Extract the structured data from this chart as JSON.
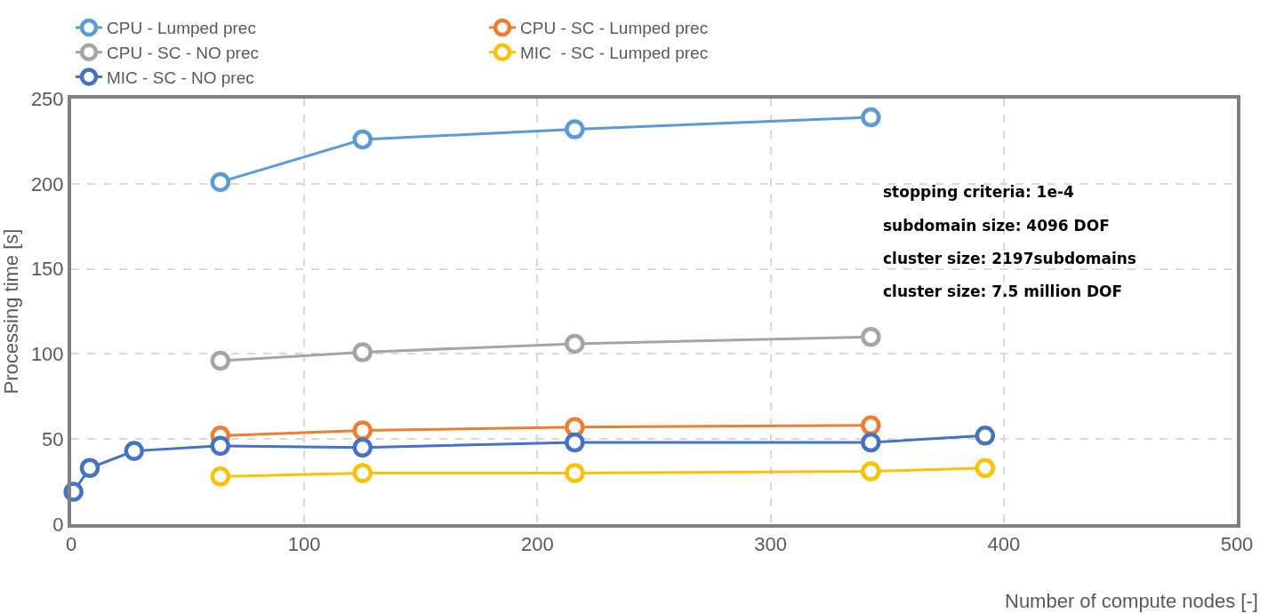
{
  "chart_data": {
    "type": "line",
    "xlabel": "Number of compute nodes [-]",
    "ylabel": "Processing time [s]",
    "xlim": [
      0,
      500
    ],
    "xticks": [
      0,
      100,
      200,
      300,
      400,
      500
    ],
    "ylim": [
      0,
      250
    ],
    "yticks": [
      0,
      50,
      100,
      150,
      200,
      250
    ],
    "grid": true,
    "legend": "top",
    "marker": "circle",
    "line_style": "solid",
    "annotations": [
      "stopping criteria: 1e-4",
      "subdomain size: 4096 DOF",
      "cluster size: 2197subdomains",
      "cluster size: 7.5 million DOF"
    ],
    "series": [
      {
        "name": "CPU - Lumped prec",
        "color": "#5b9bd5",
        "x": [
          64,
          125,
          216,
          343
        ],
        "values": [
          201,
          226,
          232,
          239
        ]
      },
      {
        "name": "CPU - SC - Lumped prec",
        "color": "#ed7d31",
        "x": [
          64,
          125,
          216,
          343
        ],
        "values": [
          52,
          55,
          57,
          58
        ]
      },
      {
        "name": "CPU - SC - NO prec",
        "color": "#a5a5a5",
        "x": [
          64,
          125,
          216,
          343
        ],
        "values": [
          96,
          101,
          106,
          110
        ]
      },
      {
        "name": "MIC  - SC - Lumped prec",
        "color": "#ffc000",
        "x": [
          64,
          125,
          216,
          343,
          392
        ],
        "values": [
          28,
          30,
          30,
          31,
          33
        ]
      },
      {
        "name": "MIC - SC - NO prec",
        "color": "#4472c4",
        "x": [
          1,
          8,
          27,
          64,
          125,
          216,
          343,
          392
        ],
        "values": [
          19,
          33,
          43,
          46,
          45,
          48,
          48,
          52
        ]
      }
    ]
  }
}
